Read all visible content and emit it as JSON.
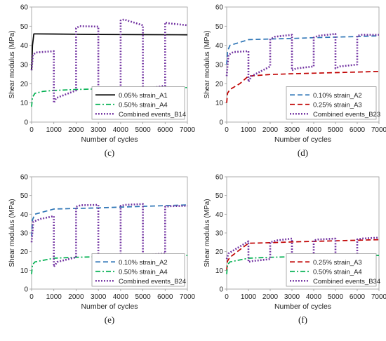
{
  "chart_data": [
    {
      "type": "line",
      "panel_label": "(c)",
      "xlabel": "Number of cycles",
      "ylabel": "Shear modulus (MPa)",
      "xlim": [
        0,
        7000
      ],
      "ylim": [
        0,
        60
      ],
      "x_ticks": [
        0,
        1000,
        2000,
        3000,
        4000,
        5000,
        6000,
        7000
      ],
      "y_ticks": [
        0,
        10,
        20,
        30,
        40,
        50,
        60
      ],
      "legend_position": "bottom-right",
      "grid": false,
      "series": [
        {
          "name": "0.05% strain_A1",
          "color": "#000000",
          "dash": "solid",
          "points": [
            [
              0,
              27
            ],
            [
              40,
              40
            ],
            [
              100,
              46
            ],
            [
              200,
              46
            ],
            [
              1000,
              45.9
            ],
            [
              3000,
              45.7
            ],
            [
              5000,
              45.6
            ],
            [
              7000,
              45.5
            ]
          ]
        },
        {
          "name": "0.50% strain_A4",
          "color": "#00b050",
          "dash": "dashdot",
          "points": [
            [
              0,
              8
            ],
            [
              40,
              13
            ],
            [
              150,
              15
            ],
            [
              500,
              16
            ],
            [
              1000,
              16.5
            ],
            [
              2000,
              17
            ],
            [
              3000,
              17.3
            ],
            [
              4000,
              17.5
            ],
            [
              5000,
              17.7
            ],
            [
              6000,
              17.9
            ],
            [
              7000,
              18
            ]
          ]
        },
        {
          "name": "Combined events_B14",
          "color": "#7030a0",
          "dash": "dot",
          "points": [
            [
              0,
              27
            ],
            [
              60,
              35
            ],
            [
              200,
              36.3
            ],
            [
              1000,
              37
            ],
            [
              1000,
              10
            ],
            [
              1100,
              12.5
            ],
            [
              2000,
              16.5
            ],
            [
              2000,
              49
            ],
            [
              2150,
              50
            ],
            [
              3000,
              49.8
            ],
            [
              3000,
              16.5
            ],
            [
              3200,
              17
            ],
            [
              4000,
              18
            ],
            [
              4000,
              53
            ],
            [
              4150,
              53.5
            ],
            [
              5000,
              50.5
            ],
            [
              5000,
              17.3
            ],
            [
              5200,
              17.5
            ],
            [
              6000,
              19
            ],
            [
              6000,
              52
            ],
            [
              6150,
              51.5
            ],
            [
              7000,
              50.5
            ]
          ]
        }
      ]
    },
    {
      "type": "line",
      "panel_label": "(d)",
      "xlabel": "Number of cycles",
      "ylabel": "Shear modulus (MPa)",
      "xlim": [
        0,
        7000
      ],
      "ylim": [
        0,
        60
      ],
      "x_ticks": [
        0,
        1000,
        2000,
        3000,
        4000,
        5000,
        6000,
        7000
      ],
      "y_ticks": [
        0,
        10,
        20,
        30,
        40,
        50,
        60
      ],
      "legend_position": "bottom-right",
      "grid": false,
      "series": [
        {
          "name": "0.10% strain_A2",
          "color": "#2e75b6",
          "dash": "dash",
          "points": [
            [
              0,
              30
            ],
            [
              40,
              37
            ],
            [
              150,
              40
            ],
            [
              1000,
              43
            ],
            [
              2000,
              43.3
            ],
            [
              3000,
              43.6
            ],
            [
              4000,
              44
            ],
            [
              5000,
              44.3
            ],
            [
              6000,
              44.6
            ],
            [
              7000,
              45
            ]
          ]
        },
        {
          "name": "0.25% strain_A3",
          "color": "#c00000",
          "dash": "dash",
          "points": [
            [
              0,
              10
            ],
            [
              40,
              15
            ],
            [
              150,
              17
            ],
            [
              600,
              20
            ],
            [
              1000,
              24
            ],
            [
              2000,
              24.8
            ],
            [
              3000,
              25.2
            ],
            [
              4000,
              25.5
            ],
            [
              5000,
              25.8
            ],
            [
              6000,
              26.1
            ],
            [
              7000,
              26.4
            ]
          ]
        },
        {
          "name": "Combined events_B23",
          "color": "#7030a0",
          "dash": "dot",
          "points": [
            [
              0,
              24
            ],
            [
              80,
              35
            ],
            [
              300,
              36.5
            ],
            [
              1000,
              37
            ],
            [
              1000,
              21
            ],
            [
              1150,
              24
            ],
            [
              2000,
              29
            ],
            [
              2000,
              43
            ],
            [
              2200,
              44.5
            ],
            [
              3000,
              45.5
            ],
            [
              3000,
              27
            ],
            [
              3200,
              28
            ],
            [
              4000,
              29
            ],
            [
              4000,
              44
            ],
            [
              4200,
              45
            ],
            [
              5000,
              46
            ],
            [
              5000,
              28
            ],
            [
              5200,
              29
            ],
            [
              6000,
              30
            ],
            [
              6000,
              45
            ],
            [
              6200,
              45.5
            ],
            [
              7000,
              45.5
            ]
          ]
        }
      ]
    },
    {
      "type": "line",
      "panel_label": "(e)",
      "xlabel": "Number of cycles",
      "ylabel": "Shear modulus (MPa)",
      "xlim": [
        0,
        7000
      ],
      "ylim": [
        0,
        60
      ],
      "x_ticks": [
        0,
        1000,
        2000,
        3000,
        4000,
        5000,
        6000,
        7000
      ],
      "y_ticks": [
        0,
        10,
        20,
        30,
        40,
        50,
        60
      ],
      "legend_position": "bottom-right",
      "grid": false,
      "series": [
        {
          "name": "0.10% strain_A2",
          "color": "#2e75b6",
          "dash": "dash",
          "points": [
            [
              0,
              28
            ],
            [
              40,
              37
            ],
            [
              150,
              40
            ],
            [
              1000,
              42.8
            ],
            [
              2000,
              43.1
            ],
            [
              3000,
              43.4
            ],
            [
              4000,
              43.8
            ],
            [
              5000,
              44.2
            ],
            [
              6000,
              44.6
            ],
            [
              7000,
              45
            ]
          ]
        },
        {
          "name": "0.50% strain_A4",
          "color": "#00b050",
          "dash": "dashdot",
          "points": [
            [
              0,
              8
            ],
            [
              40,
              13
            ],
            [
              150,
              14.5
            ],
            [
              1000,
              16.5
            ],
            [
              2000,
              17
            ],
            [
              3000,
              17.3
            ],
            [
              4000,
              17.5
            ],
            [
              5000,
              17.7
            ],
            [
              6000,
              17.9
            ],
            [
              7000,
              18
            ]
          ]
        },
        {
          "name": "Combined events_B24",
          "color": "#7030a0",
          "dash": "dot",
          "points": [
            [
              0,
              25
            ],
            [
              80,
              36
            ],
            [
              400,
              37.5
            ],
            [
              1000,
              39
            ],
            [
              1000,
              12
            ],
            [
              1150,
              14.5
            ],
            [
              2000,
              17
            ],
            [
              2000,
              44
            ],
            [
              2200,
              44.8
            ],
            [
              3000,
              45
            ],
            [
              3000,
              17
            ],
            [
              3200,
              17.5
            ],
            [
              4000,
              18
            ],
            [
              4000,
              44.5
            ],
            [
              4200,
              45
            ],
            [
              5000,
              45.5
            ],
            [
              5000,
              18
            ],
            [
              5200,
              18.3
            ],
            [
              6000,
              19
            ],
            [
              6000,
              44
            ],
            [
              6200,
              44.3
            ],
            [
              7000,
              44.5
            ]
          ]
        }
      ]
    },
    {
      "type": "line",
      "panel_label": "(f)",
      "xlabel": "Number of cycles",
      "ylabel": "Shear modulus (MPa)",
      "xlim": [
        0,
        7000
      ],
      "ylim": [
        0,
        60
      ],
      "x_ticks": [
        0,
        1000,
        2000,
        3000,
        4000,
        5000,
        6000,
        7000
      ],
      "y_ticks": [
        0,
        10,
        20,
        30,
        40,
        50,
        60
      ],
      "legend_position": "bottom-right",
      "grid": false,
      "series": [
        {
          "name": "0.25% strain_A3",
          "color": "#c00000",
          "dash": "dash",
          "points": [
            [
              0,
              10
            ],
            [
              40,
              15
            ],
            [
              150,
              17
            ],
            [
              600,
              21
            ],
            [
              1000,
              24.5
            ],
            [
              2000,
              24.8
            ],
            [
              3000,
              25.2
            ],
            [
              4000,
              25.5
            ],
            [
              5000,
              25.8
            ],
            [
              6000,
              26.1
            ],
            [
              7000,
              26.4
            ]
          ]
        },
        {
          "name": "0.50% strain_A4",
          "color": "#00b050",
          "dash": "dashdot",
          "points": [
            [
              0,
              8
            ],
            [
              40,
              13
            ],
            [
              150,
              14.5
            ],
            [
              1000,
              16.5
            ],
            [
              2000,
              17
            ],
            [
              3000,
              17.3
            ],
            [
              4000,
              17.5
            ],
            [
              5000,
              17.7
            ],
            [
              6000,
              17.9
            ],
            [
              7000,
              18
            ]
          ]
        },
        {
          "name": "Combined events_B34",
          "color": "#7030a0",
          "dash": "dot",
          "points": [
            [
              0,
              16
            ],
            [
              80,
              19
            ],
            [
              500,
              22
            ],
            [
              1000,
              25.5
            ],
            [
              1000,
              14.5
            ],
            [
              1200,
              15
            ],
            [
              2000,
              16
            ],
            [
              2000,
              25
            ],
            [
              2300,
              26
            ],
            [
              3000,
              27
            ],
            [
              3000,
              16
            ],
            [
              3200,
              16.5
            ],
            [
              4000,
              17
            ],
            [
              4000,
              26
            ],
            [
              4200,
              26.5
            ],
            [
              5000,
              27
            ],
            [
              5000,
              16.5
            ],
            [
              5200,
              17
            ],
            [
              6000,
              17.5
            ],
            [
              6000,
              26.5
            ],
            [
              6200,
              27
            ],
            [
              7000,
              27.5
            ]
          ]
        }
      ]
    }
  ]
}
